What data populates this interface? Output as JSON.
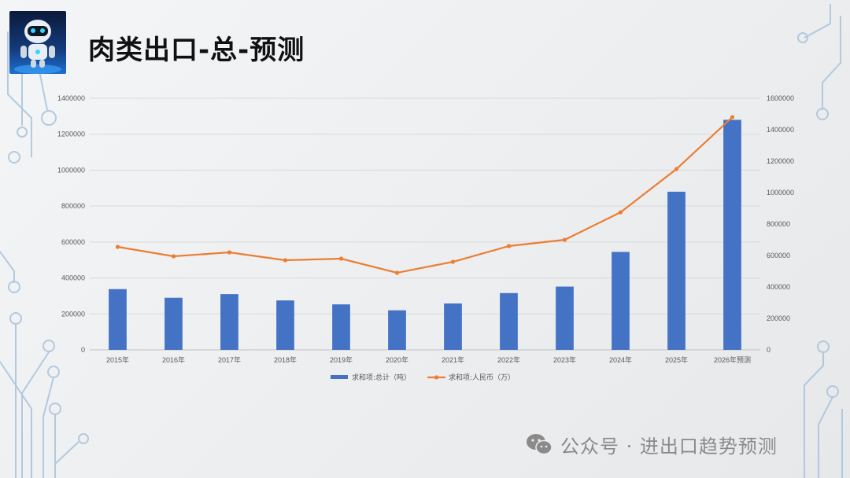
{
  "page": {
    "title": "肉类出口-总-预测"
  },
  "watermark": {
    "text": "公众号 · 进出口趋势预测",
    "icon": "wechat-icon"
  },
  "logo": {
    "icon": "robot-icon"
  },
  "colors": {
    "bar": "#4472c4",
    "line": "#ed7d31",
    "grid": "#d9d9d9",
    "axis_text": "#595959"
  },
  "chart_data": {
    "type": "bar",
    "categories": [
      "2015年",
      "2016年",
      "2017年",
      "2018年",
      "2019年",
      "2020年",
      "2021年",
      "2022年",
      "2023年",
      "2024年",
      "2025年",
      "2026年预测"
    ],
    "series": [
      {
        "name": "求和项:总计（吨）",
        "type": "bar",
        "axis": "left",
        "values": [
          338000,
          290000,
          310000,
          275000,
          253000,
          220000,
          258000,
          316000,
          352000,
          545000,
          880000,
          1280000
        ]
      },
      {
        "name": "求和项:人民币（万）",
        "type": "line",
        "axis": "right",
        "values": [
          655000,
          595000,
          620000,
          570000,
          580000,
          490000,
          560000,
          660000,
          700000,
          875000,
          1150000,
          1480000
        ]
      }
    ],
    "y_left": {
      "min": 0,
      "max": 1400000,
      "step": 200000,
      "ticks": [
        "0",
        "200000",
        "400000",
        "600000",
        "800000",
        "1000000",
        "1200000",
        "1400000"
      ]
    },
    "y_right": {
      "min": 0,
      "max": 1600000,
      "step": 200000,
      "ticks": [
        "0",
        "200000",
        "400000",
        "600000",
        "800000",
        "1000000",
        "1200000",
        "1400000",
        "1600000"
      ]
    },
    "grid": true,
    "legend": "bottom",
    "title": "",
    "xlabel": "",
    "ylabel": ""
  }
}
